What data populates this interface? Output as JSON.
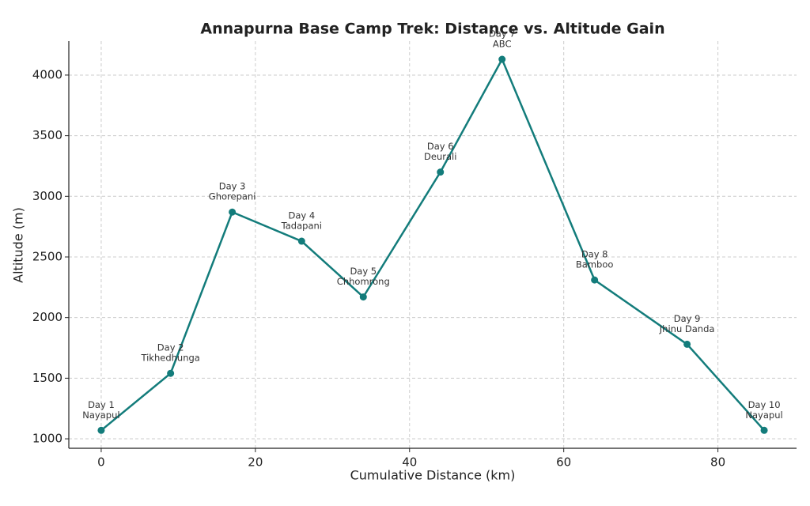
{
  "chart_data": {
    "type": "line",
    "title": "Annapurna Base Camp Trek: Distance vs. Altitude Gain",
    "x_label": "Cumulative Distance (km)",
    "y_label": "Altitude (m)",
    "x": [
      0,
      9,
      17,
      26,
      34,
      44,
      52,
      64,
      76,
      86
    ],
    "series": [
      {
        "color": "#137c7b",
        "values": [
          1070,
          1540,
          2870,
          2630,
          2170,
          3200,
          4130,
          2310,
          1780,
          1070
        ]
      }
    ],
    "point_labels": [
      [
        "Day 1",
        "Nayapul"
      ],
      [
        "Day 2",
        "Tikhedhunga"
      ],
      [
        "Day 3",
        "Ghorepani"
      ],
      [
        "Day 4",
        "Tadapani"
      ],
      [
        "Day 5",
        "Chhomrong"
      ],
      [
        "Day 6",
        "Deurali"
      ],
      [
        "Day 7",
        "ABC"
      ],
      [
        "Day 8",
        "Bamboo"
      ],
      [
        "Day 9",
        "Jhinu Danda"
      ],
      [
        "Day 10",
        "Nayapul"
      ]
    ],
    "xlim": [
      -4.2,
      90.2
    ],
    "xticks": [
      0,
      20,
      40,
      60,
      80
    ],
    "ylim": [
      922,
      4280
    ],
    "yticks": [
      1000,
      1500,
      2000,
      2500,
      3000,
      3500,
      4000
    ],
    "grid": true
  }
}
